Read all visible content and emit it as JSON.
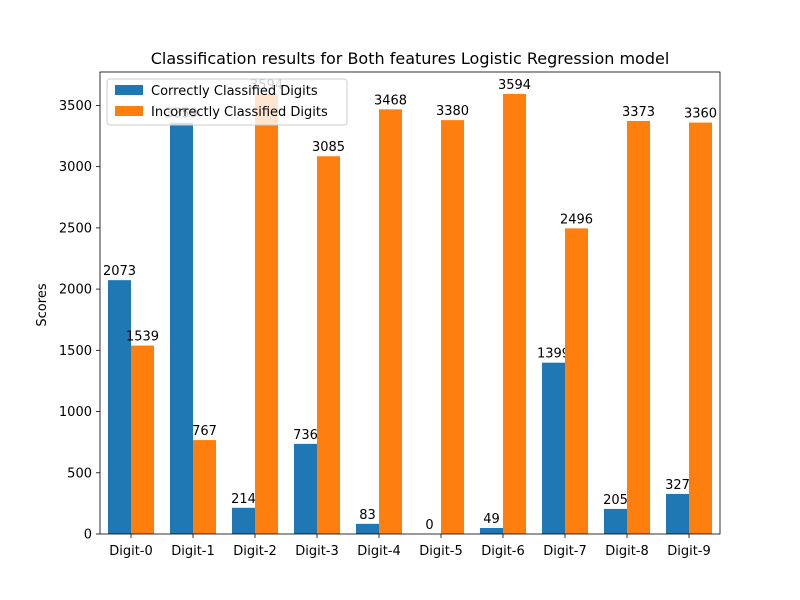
{
  "chart_data": {
    "type": "bar",
    "title": "Classification results for Both features Logistic Regression model",
    "xlabel": "",
    "ylabel": "Scores",
    "categories": [
      "Digit-0",
      "Digit-1",
      "Digit-2",
      "Digit-3",
      "Digit-4",
      "Digit-5",
      "Digit-6",
      "Digit-7",
      "Digit-8",
      "Digit-9"
    ],
    "series": [
      {
        "name": "Correctly Classified Digits",
        "color": "#1f77b4",
        "values": [
          2073,
          3359,
          214,
          736,
          83,
          0,
          49,
          1399,
          205,
          327
        ]
      },
      {
        "name": "Incorrectly Classified Digits",
        "color": "#ff7f0e",
        "values": [
          1539,
          767,
          3594,
          3085,
          3468,
          3380,
          3594,
          2496,
          3373,
          3360
        ]
      }
    ],
    "ylim": [
      0,
      3773
    ],
    "yticks": [
      0,
      500,
      1000,
      1500,
      2000,
      2500,
      3000,
      3500
    ],
    "legend": "top-left",
    "grid": false
  }
}
